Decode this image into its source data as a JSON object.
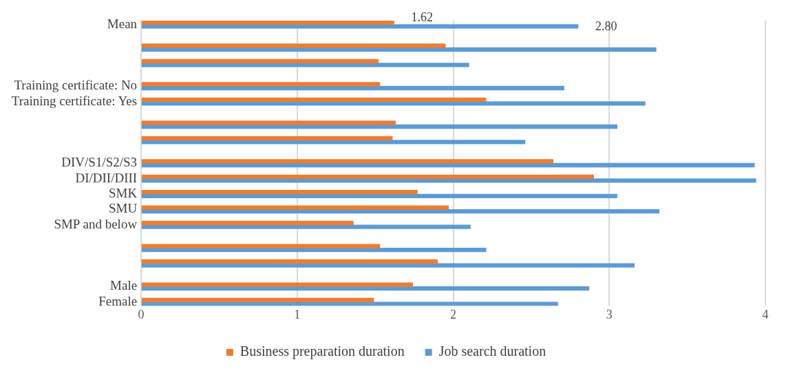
{
  "chart_data": {
    "type": "bar",
    "orientation": "horizontal",
    "categories": [
      "Mean",
      null,
      null,
      null,
      null,
      null,
      null,
      null,
      "Training certificate: No",
      null,
      "Training certificate: Yes",
      null,
      null,
      null,
      null,
      null,
      null,
      null,
      "DIV/S1/S2/S3",
      null,
      "DI/DII/DIII",
      null,
      "SMK",
      null,
      "SMU",
      null,
      "SMP and below",
      null,
      null,
      null,
      null,
      null,
      null,
      null,
      "Male",
      null,
      "Female"
    ],
    "series": [
      {
        "name": "Business preparation duration",
        "color": "#ed7d31",
        "values": [
          1.62,
          null,
          null,
          1.95,
          null,
          1.52,
          null,
          null,
          1.53,
          null,
          2.21,
          null,
          null,
          1.63,
          null,
          1.61,
          null,
          null,
          2.64,
          null,
          2.9,
          null,
          1.77,
          null,
          1.97,
          null,
          1.36,
          null,
          null,
          1.53,
          null,
          1.9,
          null,
          null,
          1.74,
          null,
          1.49
        ],
        "value_labels": [
          "1.62",
          null,
          null,
          null,
          null,
          null,
          null,
          null,
          null,
          null,
          null,
          null,
          null,
          null,
          null,
          null,
          null,
          null,
          null,
          null,
          null,
          null,
          null,
          null,
          null,
          null,
          null,
          null,
          null,
          null,
          null,
          null,
          null,
          null,
          null,
          null,
          null
        ]
      },
      {
        "name": "Job search duration",
        "color": "#5b9bd5",
        "values": [
          2.8,
          null,
          null,
          3.3,
          null,
          2.1,
          null,
          null,
          2.71,
          null,
          3.23,
          null,
          null,
          3.05,
          null,
          2.46,
          null,
          null,
          3.93,
          null,
          3.94,
          null,
          3.05,
          null,
          3.32,
          null,
          2.11,
          null,
          null,
          2.21,
          null,
          3.16,
          null,
          null,
          2.87,
          null,
          2.67
        ],
        "value_labels": [
          "2.80",
          null,
          null,
          null,
          null,
          null,
          null,
          null,
          null,
          null,
          null,
          null,
          null,
          null,
          null,
          null,
          null,
          null,
          null,
          null,
          null,
          null,
          null,
          null,
          null,
          null,
          null,
          null,
          null,
          null,
          null,
          null,
          null,
          null,
          null,
          null,
          null
        ]
      }
    ],
    "xlim": [
      0,
      4
    ],
    "xticks": [
      0,
      1,
      2,
      3,
      4
    ],
    "grid": "x",
    "legend": "bottom"
  }
}
